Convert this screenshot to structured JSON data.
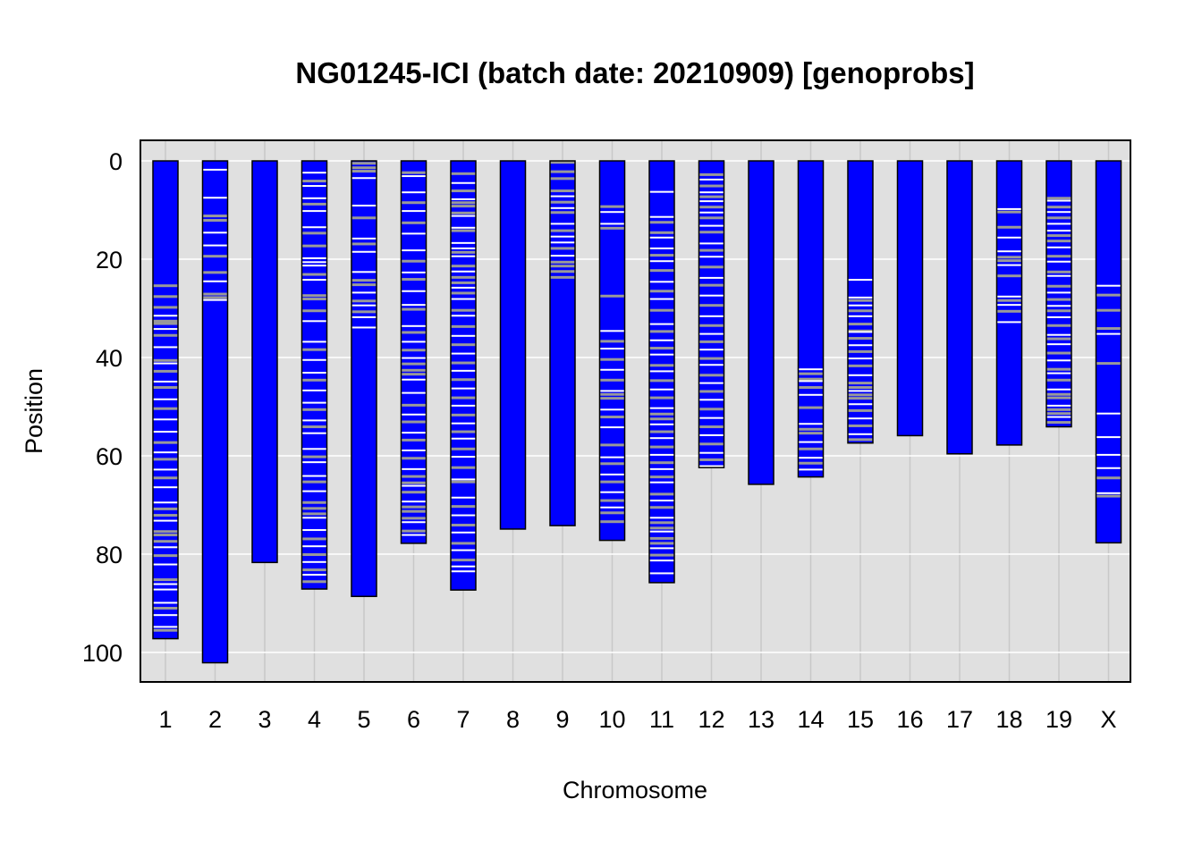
{
  "chart_data": {
    "type": "chromosome-map",
    "title": "NG01245-ICI (batch date: 20210909) [genoprobs]",
    "xlabel": "Chromosome",
    "ylabel": "Position",
    "ylim": [
      0,
      106
    ],
    "y_reversed": true,
    "y_ticks": [
      0,
      20,
      40,
      60,
      80,
      100
    ],
    "grid": true,
    "colors": {
      "panel_background": "#e0e0e0",
      "gridline": "#ffffff",
      "chromosome_fill": "#0000ff",
      "homozygous_marker": "#ffffff",
      "heterozygous_marker": "#999999"
    },
    "chromosomes": [
      {
        "name": "1",
        "length": 97.2,
        "white": [
          31.5,
          34.2,
          37.9,
          41.2,
          44.9,
          48.5,
          52.6,
          55.1,
          59.3,
          62.8,
          66.4,
          69.5,
          73.2,
          78.6,
          82.1,
          86.1,
          87.2,
          89.9,
          92.4,
          94.8
        ],
        "gray": [
          25.4,
          27.6,
          29.8,
          32.6,
          33.1,
          35.5,
          40.6,
          42.8,
          46.1,
          50.4,
          57.3,
          60.7,
          64.5,
          70.8,
          72.1,
          75.4,
          76.1,
          77.4,
          80.3,
          85.2,
          91.0,
          95.5
        ]
      },
      {
        "name": "2",
        "length": 102.1,
        "white": [
          1.8,
          7.5,
          14.6,
          17.2,
          24.5,
          28.3
        ],
        "gray": [
          11.2,
          12.1,
          19.4,
          22.7,
          27.1,
          27.8
        ]
      },
      {
        "name": "3",
        "length": 81.7,
        "white": [],
        "gray": []
      },
      {
        "name": "4",
        "length": 87.1,
        "white": [
          2.4,
          5.1,
          7.6,
          10.2,
          13.5,
          19.8,
          20.6,
          21.3,
          24.2,
          32.6,
          36.8,
          40.5,
          43.1,
          46.7,
          49.2,
          52.8,
          55.4,
          58.6,
          61.3,
          64.1,
          67.2,
          72.6,
          75.1,
          78.4,
          81.6,
          84.2
        ],
        "gray": [
          4.1,
          8.8,
          14.7,
          17.3,
          23.1,
          27.4,
          28.1,
          30.5,
          38.4,
          44.6,
          50.6,
          54.1,
          60.2,
          65.3,
          69.5,
          70.7,
          71.8,
          76.9,
          80.1,
          83.2,
          85.6
        ]
      },
      {
        "name": "5",
        "length": 88.6,
        "white": [
          3.5,
          9.1,
          15.8,
          18.5,
          22.6,
          26.8,
          29.4,
          31.8,
          33.9
        ],
        "gray": [
          0.5,
          1.4,
          2.1,
          11.6,
          16.9,
          24.3,
          25.2,
          28.5,
          30.7
        ]
      },
      {
        "name": "6",
        "length": 77.8,
        "white": [
          3.1,
          6.4,
          10.2,
          14.8,
          18.2,
          22.7,
          26.5,
          29.3,
          33.6,
          36.8,
          40.1,
          44.5,
          47.2,
          51.6,
          55.3,
          58.9,
          62.7,
          66.1,
          69.3,
          73.5,
          76.1
        ],
        "gray": [
          2.4,
          8.5,
          12.6,
          20.4,
          24.1,
          30.2,
          34.9,
          38.5,
          41.3,
          42.6,
          43.4,
          49.7,
          53.1,
          56.8,
          60.5,
          64.2,
          65.5,
          67.4,
          70.4,
          71.3,
          72.7,
          75.3
        ]
      },
      {
        "name": "7",
        "length": 87.3,
        "white": [
          4.5,
          7.8,
          11.2,
          13.6,
          16.7,
          17.8,
          19.4,
          22.5,
          25.8,
          28.1,
          31.5,
          35.6,
          39.2,
          42.7,
          46.3,
          49.8,
          53.4,
          56.5,
          60.2,
          64.8,
          68.5,
          72.1,
          75.6,
          79.2,
          82.5,
          83.5
        ],
        "gray": [
          2.6,
          6.1,
          8.5,
          9.2,
          10.6,
          14.2,
          18.6,
          21.4,
          23.7,
          24.8,
          26.9,
          30.4,
          33.7,
          37.4,
          41.1,
          44.5,
          48.2,
          51.7,
          55.1,
          58.6,
          62.4,
          65.3,
          70.3,
          74.1,
          77.8,
          81.2
        ]
      },
      {
        "name": "8",
        "length": 74.9,
        "white": [],
        "gray": []
      },
      {
        "name": "9",
        "length": 74.2,
        "white": [
          7.2,
          9.6,
          12.8,
          15.4,
          16.6,
          19.3
        ],
        "gray": [
          0.3,
          2.2,
          3.6,
          6.1,
          8.4,
          10.5,
          14.2,
          17.8,
          20.6,
          21.4,
          22.5,
          23.7
        ]
      },
      {
        "name": "10",
        "length": 77.2,
        "white": [
          10.4,
          12.8,
          34.6,
          38.2,
          42.5,
          46.8,
          50.6,
          54.2,
          60.3,
          63.8,
          67.4,
          70.5
        ],
        "gray": [
          9.3,
          13.7,
          27.5,
          36.7,
          40.4,
          44.6,
          47.5,
          48.3,
          52.1,
          57.8,
          61.6,
          65.3,
          69.1,
          71.6,
          73.4
        ]
      },
      {
        "name": "11",
        "length": 85.8,
        "white": [
          6.3,
          11.4,
          15.6,
          17.8,
          20.4,
          24.6,
          28.1,
          33.2,
          36.5,
          39.4,
          42.8,
          46.5,
          50.3,
          53.6,
          56.4,
          59.8,
          62.7,
          65.4,
          69.1,
          72.6,
          75.4,
          78.8,
          81.3,
          83.9
        ],
        "gray": [
          12.5,
          14.6,
          19.2,
          22.3,
          26.5,
          30.4,
          34.7,
          38.1,
          41.6,
          44.7,
          48.2,
          51.5,
          52.5,
          55.1,
          58.2,
          61.4,
          64.3,
          67.8,
          70.5,
          73.6,
          74.7,
          76.8,
          77.8,
          80.2
        ]
      },
      {
        "name": "12",
        "length": 62.4,
        "white": [
          3.8,
          6.4,
          8.2,
          10.5,
          13.2,
          16.8,
          19.5,
          23.8,
          27.4,
          31.6,
          35.2,
          38.4,
          41.5,
          45.2,
          48.6,
          52.3,
          55.8,
          59.4,
          62.1
        ],
        "gray": [
          2.8,
          5.1,
          7.3,
          9.4,
          11.6,
          14.5,
          18.2,
          21.6,
          25.3,
          29.4,
          33.5,
          36.8,
          40.2,
          43.6,
          46.9,
          50.5,
          54.1,
          57.6,
          60.8
        ]
      },
      {
        "name": "13",
        "length": 65.8,
        "white": [],
        "gray": []
      },
      {
        "name": "14",
        "length": 64.3,
        "white": [
          42.4,
          44.8,
          47.6,
          53.5,
          57.2,
          60.4,
          62.8
        ],
        "gray": [
          43.3,
          44.4,
          46.1,
          50.2,
          54.6,
          55.4,
          58.6,
          61.5
        ]
      },
      {
        "name": "15",
        "length": 57.4,
        "white": [
          24.2,
          27.8,
          29.4,
          31.6,
          34.8,
          37.5,
          40.2,
          43.6,
          46.8,
          49.5,
          52.4,
          55.6
        ],
        "gray": [
          28.4,
          30.5,
          33.2,
          34.6,
          36.1,
          38.8,
          41.7,
          45.2,
          46.1,
          47.6,
          48.3,
          50.8,
          53.9,
          56.7
        ]
      },
      {
        "name": "16",
        "length": 55.9,
        "white": [],
        "gray": []
      },
      {
        "name": "17",
        "length": 59.6,
        "white": [],
        "gray": []
      },
      {
        "name": "18",
        "length": 57.8,
        "white": [
          9.8,
          15.6,
          18.4,
          21.2,
          27.6,
          29.3,
          32.8
        ],
        "gray": [
          10.4,
          13.5,
          19.6,
          20.3,
          23.4,
          28.4,
          30.6
        ]
      },
      {
        "name": "19",
        "length": 54.1,
        "white": [
          8.1,
          10.4,
          12.8,
          14.2,
          17.6,
          20.5,
          23.4,
          26.8,
          29.5,
          31.8,
          35.4,
          37.3,
          40.6,
          43.2,
          46.5,
          49.8,
          52.1
        ],
        "gray": [
          7.6,
          9.4,
          11.6,
          15.2,
          16.3,
          19.4,
          22.6,
          25.5,
          28.2,
          30.5,
          33.5,
          36.2,
          39.1,
          42.4,
          44.6,
          47.5,
          48.2,
          50.6,
          51.4,
          53.2
        ]
      },
      {
        "name": "X",
        "length": 77.7,
        "white": [
          25.4,
          35.2,
          51.4,
          56.2,
          59.8,
          62.5,
          67.6
        ],
        "gray": [
          27.3,
          30.4,
          34.1,
          41.2,
          64.5,
          68.2
        ]
      }
    ]
  }
}
